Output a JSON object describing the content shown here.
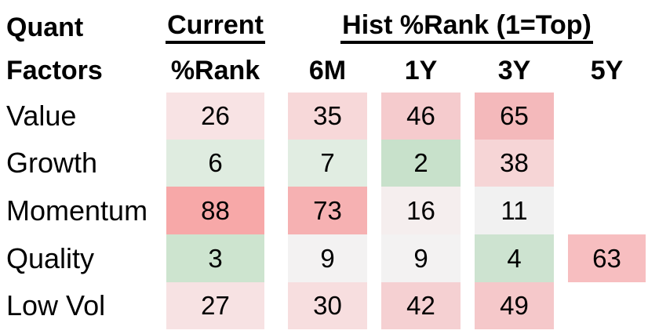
{
  "table": {
    "corner": {
      "line1": "Quant",
      "line2": "Factors"
    },
    "group_headers": {
      "current": "Current",
      "hist": "Hist %Rank (1=Top)"
    },
    "columns": {
      "c1": "%Rank",
      "c2": "6M",
      "c3": "1Y",
      "c4": "3Y",
      "c5": "5Y"
    },
    "rows": [
      {
        "label": "Value",
        "cells": [
          {
            "value": "26",
            "color": "#F8E3E4"
          },
          {
            "value": "35",
            "color": "#F7D8D9"
          },
          {
            "value": "46",
            "color": "#F5CBCD"
          },
          {
            "value": "65",
            "color": "#F4B9BB"
          },
          {
            "value": "",
            "color": "#FFFFFF"
          }
        ]
      },
      {
        "label": "Growth",
        "cells": [
          {
            "value": "6",
            "color": "#DFECE0"
          },
          {
            "value": "7",
            "color": "#E1EDE2"
          },
          {
            "value": "2",
            "color": "#C8E1CB"
          },
          {
            "value": "38",
            "color": "#F6D5D6"
          },
          {
            "value": "",
            "color": "#FFFFFF"
          }
        ]
      },
      {
        "label": "Momentum",
        "cells": [
          {
            "value": "88",
            "color": "#F7A8A8"
          },
          {
            "value": "73",
            "color": "#F6B1B2"
          },
          {
            "value": "16",
            "color": "#F5EEEE"
          },
          {
            "value": "11",
            "color": "#F1F1F1"
          },
          {
            "value": "",
            "color": "#FFFFFF"
          }
        ]
      },
      {
        "label": "Quality",
        "cells": [
          {
            "value": "3",
            "color": "#CDE4CF"
          },
          {
            "value": "9",
            "color": "#F3F2F2"
          },
          {
            "value": "9",
            "color": "#F3F2F2"
          },
          {
            "value": "4",
            "color": "#CDE3D0"
          },
          {
            "value": "63",
            "color": "#F7BEC0"
          }
        ]
      },
      {
        "label": "Low Vol",
        "cells": [
          {
            "value": "27",
            "color": "#F7E2E3"
          },
          {
            "value": "30",
            "color": "#F7DEDF"
          },
          {
            "value": "42",
            "color": "#F5D0D2"
          },
          {
            "value": "49",
            "color": "#F5C8CA"
          },
          {
            "value": "",
            "color": "#FFFFFF"
          }
        ]
      }
    ]
  },
  "chart_data": {
    "type": "heatmap",
    "title": "Quant Factors",
    "column_groups": [
      {
        "label": "Current",
        "columns": [
          "%Rank"
        ]
      },
      {
        "label": "Hist %Rank (1=Top)",
        "columns": [
          "6M",
          "1Y",
          "3Y",
          "5Y"
        ]
      }
    ],
    "columns": [
      "%Rank",
      "6M",
      "1Y",
      "3Y",
      "5Y"
    ],
    "rows": [
      "Value",
      "Growth",
      "Momentum",
      "Quality",
      "Low Vol"
    ],
    "values": [
      [
        26,
        35,
        46,
        65,
        null
      ],
      [
        6,
        7,
        2,
        38,
        null
      ],
      [
        88,
        73,
        16,
        11,
        null
      ],
      [
        3,
        9,
        9,
        4,
        63
      ],
      [
        27,
        30,
        42,
        49,
        null
      ]
    ],
    "scale": {
      "low_color": "#C8E1CB",
      "mid_color": "#F2F1F1",
      "high_color": "#F7A8A8",
      "direction": "1=Top (low rank = green/best, high rank = red)"
    }
  }
}
